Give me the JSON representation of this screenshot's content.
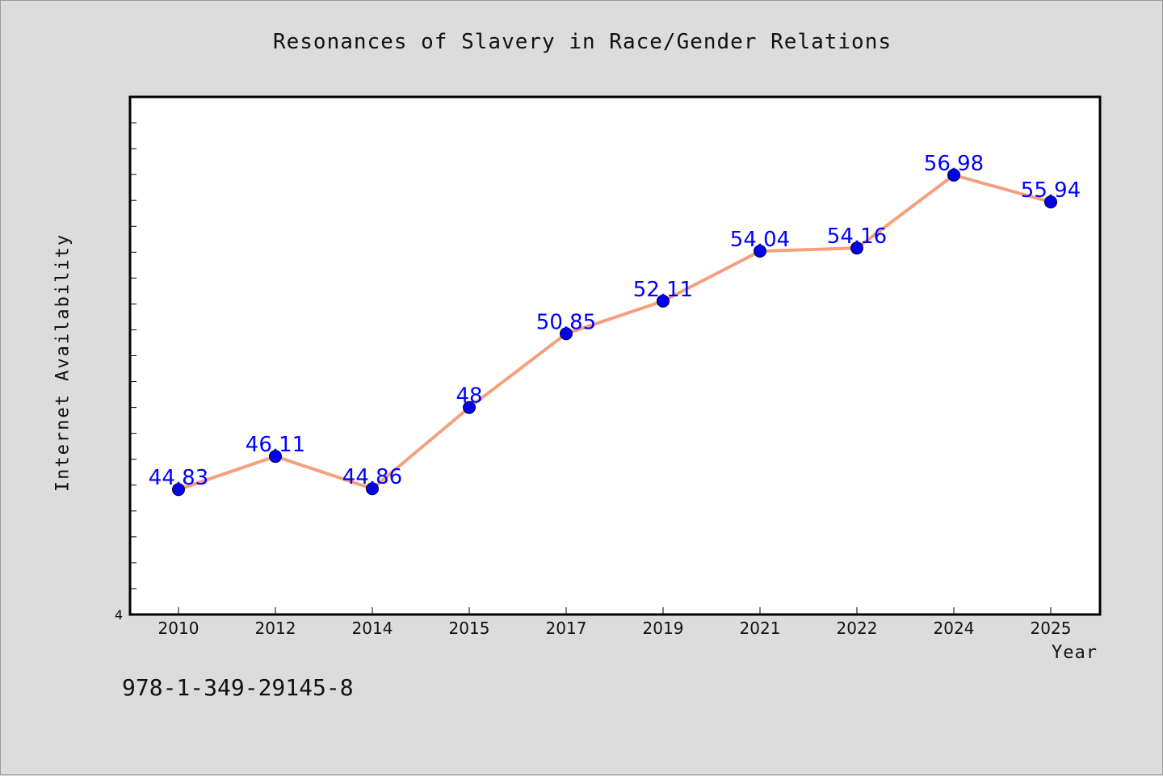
{
  "chart_data": {
    "type": "line",
    "title": "Resonances of Slavery in Race/Gender Relations",
    "xlabel": "Year",
    "ylabel": "Internet Availability",
    "categories": [
      "2010",
      "2012",
      "2014",
      "2015",
      "2017",
      "2019",
      "2021",
      "2022",
      "2024",
      "2025"
    ],
    "series": [
      {
        "values": [
          44.83,
          46.11,
          44.86,
          48,
          50.85,
          52.11,
          54.04,
          54.16,
          56.98,
          55.94
        ],
        "data_labels": [
          "44.83",
          "46.11",
          "44.86",
          "48",
          "50.85",
          "52.11",
          "54.04",
          "54.16",
          "56.98",
          "55.94"
        ]
      }
    ],
    "ylim": [
      40,
      60
    ],
    "y_tick_labels_shown": [
      "4"
    ],
    "grid": false,
    "legend": "none",
    "colors": {
      "line": "#f4a07e",
      "marker": "#0000ee",
      "data_label": "#0000ff",
      "background": "#dcdcdc",
      "plot_area": "#ffffff"
    }
  },
  "footer": {
    "isbn": "978-1-349-29145-8"
  }
}
